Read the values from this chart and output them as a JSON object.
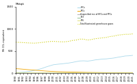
{
  "title": "Mtäqä",
  "ylabel": "Mt CO₂ equivalent",
  "years": [
    1990,
    1991,
    1992,
    1993,
    1994,
    1995,
    1996,
    1997,
    1998,
    1999,
    2000,
    2001,
    2002,
    2003,
    2004,
    2005,
    2006,
    2007,
    2008,
    2009,
    2010,
    2011,
    2012,
    2013,
    2014,
    2015,
    2016,
    2017,
    2018,
    2019,
    2020,
    2021
  ],
  "series": {
    "HFCs": {
      "color": "#a8d8ea",
      "style": "solid",
      "values": [
        10,
        15,
        22,
        32,
        45,
        62,
        82,
        108,
        138,
        165,
        190,
        200,
        208,
        218,
        228,
        242,
        260,
        275,
        278,
        272,
        282,
        298,
        308,
        318,
        322,
        332,
        342,
        358,
        372,
        388,
        392,
        402
      ]
    },
    "PFCs": {
      "color": "#f0a500",
      "style": "solid",
      "values": [
        100,
        95,
        88,
        80,
        73,
        67,
        60,
        53,
        47,
        42,
        37,
        33,
        30,
        28,
        26,
        24,
        22,
        20,
        18,
        16,
        15,
        14,
        13,
        12,
        11,
        10,
        9,
        9,
        8,
        7,
        7,
        6
      ]
    },
    "Unspecified mix of HFCs and PFCs": {
      "color": "#b0b0b0",
      "style": "solid",
      "values": [
        1,
        1,
        1,
        1,
        1,
        1,
        1,
        1,
        1,
        1,
        1,
        1,
        1,
        1,
        1,
        1,
        1,
        1,
        1,
        1,
        1,
        1,
        1,
        1,
        1,
        1,
        1,
        1,
        1,
        1,
        1,
        1
      ]
    },
    "NF3": {
      "color": "#90c090",
      "style": "solid",
      "values": [
        0,
        0,
        0,
        0,
        0,
        0,
        0,
        0,
        0,
        0,
        1,
        1,
        1,
        1,
        1,
        1,
        1,
        1,
        1,
        1,
        1,
        1,
        1,
        1,
        1,
        1,
        1,
        1,
        1,
        1,
        1,
        1
      ]
    },
    "SF6": {
      "color": "#e0e080",
      "style": "solid",
      "values": [
        4,
        4,
        4,
        4,
        4,
        4,
        4,
        4,
        4,
        4,
        4,
        4,
        4,
        4,
        4,
        4,
        4,
        4,
        4,
        4,
        4,
        4,
        4,
        4,
        3,
        3,
        3,
        3,
        3,
        3,
        3,
        3
      ]
    },
    "Total fluorinated greenhouse gases": {
      "color": "#cccc00",
      "style": "dotted",
      "values": [
        700,
        695,
        690,
        685,
        680,
        678,
        685,
        695,
        705,
        715,
        718,
        713,
        708,
        708,
        718,
        738,
        748,
        768,
        768,
        748,
        758,
        778,
        788,
        798,
        808,
        828,
        838,
        858,
        868,
        878,
        878,
        888
      ]
    }
  },
  "ylim": [
    0,
    1500
  ],
  "yticks": [
    0,
    500,
    1000,
    1500
  ],
  "figsize": [
    2.0,
    1.23
  ],
  "dpi": 100
}
